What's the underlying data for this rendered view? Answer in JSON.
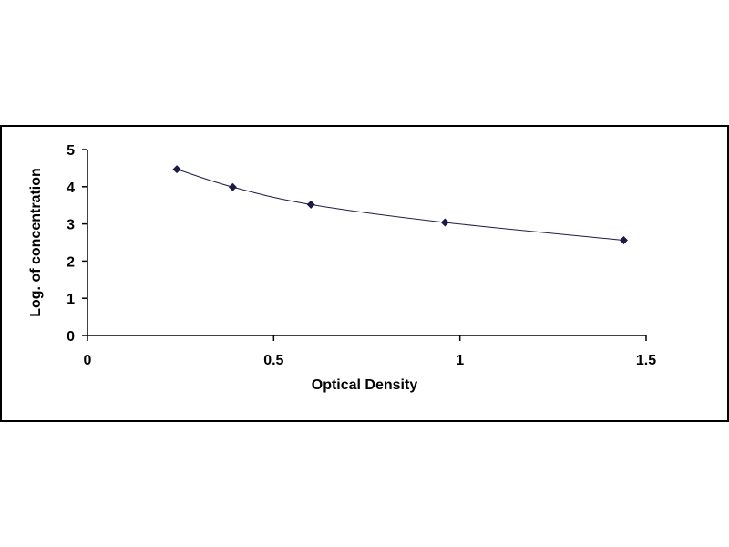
{
  "chart_data": {
    "type": "scatter",
    "title": "",
    "xlabel": "Optical Density",
    "ylabel": "Log. of concentration",
    "xlim": [
      0,
      1.5
    ],
    "ylim": [
      0,
      5
    ],
    "x_ticks": [
      "0",
      "0.5",
      "1",
      "1.5"
    ],
    "y_ticks": [
      "0",
      "1",
      "2",
      "3",
      "4",
      "5"
    ],
    "grid": false,
    "legend": "none",
    "trendline": "smooth curve through points",
    "series": [
      {
        "x": [
          0.24,
          0.39,
          0.6,
          0.96,
          1.44
        ],
        "y": [
          4.47,
          3.99,
          3.52,
          3.04,
          2.56
        ]
      }
    ],
    "colors": {
      "marker": "#1a1a4e",
      "line": "#1a1a4e",
      "axis": "#000000",
      "frame": "#000000"
    }
  }
}
